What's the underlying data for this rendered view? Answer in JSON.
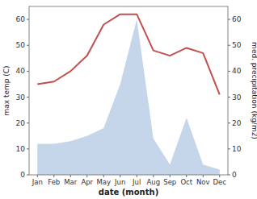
{
  "chart_data": {
    "type": "line",
    "categories": [
      "Jan",
      "Feb",
      "Mar",
      "Apr",
      "May",
      "Jun",
      "Jul",
      "Aug",
      "Sep",
      "Oct",
      "Nov",
      "Dec"
    ],
    "series": [
      {
        "type": "area",
        "axis": "y2",
        "color": "#c5d5ea",
        "values": [
          12,
          12,
          13,
          15,
          18,
          35,
          60,
          14,
          4,
          22,
          4,
          2
        ]
      },
      {
        "type": "line",
        "color": "#c0504d",
        "values": [
          35,
          36,
          40,
          46,
          58,
          62,
          62,
          48,
          46,
          49,
          47,
          31
        ]
      }
    ],
    "x_label": "date (month)",
    "y_label": "max temp (C)",
    "y2_label": "med. precipitation (kg/m2)",
    "ylim": [
      0,
      65
    ],
    "yticks": [
      0,
      10,
      20,
      30,
      40,
      50,
      60
    ],
    "y2lim": [
      0,
      65
    ],
    "y2ticks": [
      0,
      10,
      20,
      30,
      40,
      50,
      60
    ],
    "grid": false
  }
}
